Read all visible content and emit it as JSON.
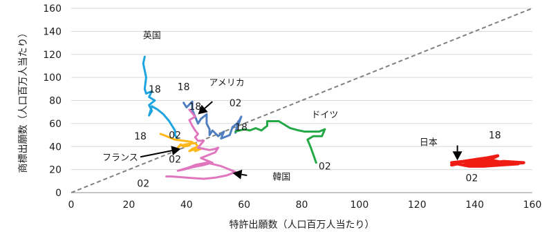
{
  "chart_data": {
    "type": "line",
    "xlabel": "特許出願数（人口百万人当たり）",
    "ylabel": "商標出願数（人口百万人当たり）",
    "xlim": [
      0,
      160
    ],
    "ylim": [
      0,
      160
    ],
    "xticks": [
      0,
      20,
      40,
      60,
      80,
      100,
      120,
      140,
      160
    ],
    "yticks": [
      0,
      20,
      40,
      60,
      80,
      100,
      120,
      140,
      160
    ],
    "grid": "horizontal",
    "reference_line": {
      "from": [
        0,
        0
      ],
      "to": [
        160,
        160
      ],
      "style": "dashed",
      "color": "#7f7f7f"
    },
    "series": [
      {
        "name": "英国",
        "color": "#1ea5e0",
        "points": [
          [
            25.5,
            118
          ],
          [
            25,
            112
          ],
          [
            26,
            100
          ],
          [
            25.5,
            90
          ],
          [
            26,
            86
          ],
          [
            28,
            88
          ],
          [
            27,
            83
          ],
          [
            29,
            80
          ],
          [
            27,
            76
          ],
          [
            28,
            71
          ],
          [
            27,
            67
          ],
          [
            28,
            75
          ],
          [
            30,
            72
          ],
          [
            32,
            68
          ],
          [
            34,
            62
          ],
          [
            35,
            58
          ],
          [
            36,
            54
          ],
          [
            36,
            50
          ],
          [
            37,
            46
          ]
        ]
      },
      {
        "name": "アメリカ",
        "color": "#4f7fbf",
        "points": [
          [
            39,
            78
          ],
          [
            40,
            74
          ],
          [
            42,
            79
          ],
          [
            42,
            72
          ],
          [
            43,
            66
          ],
          [
            44,
            60
          ],
          [
            45,
            64
          ],
          [
            47,
            68
          ],
          [
            47,
            60
          ],
          [
            48,
            55
          ],
          [
            48,
            50
          ],
          [
            49,
            54
          ],
          [
            51,
            49
          ],
          [
            53,
            53
          ],
          [
            52,
            47
          ],
          [
            55,
            50
          ],
          [
            56,
            57
          ],
          [
            58,
            61
          ],
          [
            59,
            66
          ],
          [
            57,
            52
          ],
          [
            58,
            62
          ]
        ]
      },
      {
        "name": "ドイツ",
        "color": "#22a845",
        "points": [
          [
            57,
            53
          ],
          [
            60,
            55
          ],
          [
            62,
            54
          ],
          [
            64,
            56
          ],
          [
            66,
            54
          ],
          [
            68,
            58
          ],
          [
            68,
            62
          ],
          [
            72,
            62
          ],
          [
            76,
            56
          ],
          [
            79,
            54
          ],
          [
            81,
            53
          ],
          [
            84,
            53
          ],
          [
            86,
            53
          ],
          [
            88,
            55
          ],
          [
            87,
            49
          ],
          [
            84,
            49
          ],
          [
            82,
            46
          ],
          [
            83,
            40
          ],
          [
            84,
            33
          ],
          [
            85,
            26
          ]
        ]
      },
      {
        "name": "フランス",
        "color": "#ffb81c",
        "points": [
          [
            31,
            51
          ],
          [
            33,
            49
          ],
          [
            36,
            46
          ],
          [
            39,
            45
          ],
          [
            42,
            44
          ],
          [
            41,
            41
          ],
          [
            39,
            40
          ],
          [
            38,
            42
          ],
          [
            37,
            39
          ],
          [
            38,
            41
          ],
          [
            40,
            42
          ],
          [
            43,
            43
          ],
          [
            44,
            40
          ],
          [
            42,
            38
          ],
          [
            41,
            36
          ],
          [
            42,
            37
          ],
          [
            45,
            38
          ],
          [
            43,
            36
          ]
        ]
      },
      {
        "name": "韓国",
        "color": "#e076be",
        "points": [
          [
            41,
            72
          ],
          [
            42,
            69
          ],
          [
            43,
            66
          ],
          [
            41,
            63
          ],
          [
            42,
            58
          ],
          [
            43,
            54
          ],
          [
            44,
            51
          ],
          [
            43,
            48
          ],
          [
            44,
            45
          ],
          [
            46,
            45
          ],
          [
            45,
            42
          ],
          [
            44,
            39
          ],
          [
            46,
            38
          ],
          [
            48,
            37
          ],
          [
            50,
            38
          ],
          [
            51,
            39
          ],
          [
            50,
            35
          ],
          [
            48,
            33
          ],
          [
            45,
            30
          ],
          [
            47,
            28
          ],
          [
            49,
            26
          ],
          [
            46,
            24
          ],
          [
            42,
            22
          ],
          [
            39,
            20
          ],
          [
            37,
            19
          ],
          [
            41,
            22
          ],
          [
            43,
            24
          ],
          [
            47,
            26
          ],
          [
            52,
            23
          ],
          [
            55,
            20
          ],
          [
            57,
            18
          ],
          [
            54,
            15
          ],
          [
            50,
            13
          ],
          [
            46,
            12
          ],
          [
            40,
            13
          ],
          [
            35,
            14
          ],
          [
            33,
            14
          ]
        ]
      },
      {
        "name": "日本",
        "color": "#ef1c14",
        "points": [
          [
            132,
            26
          ],
          [
            136,
            27
          ],
          [
            141,
            29
          ],
          [
            144,
            30
          ],
          [
            148,
            32
          ],
          [
            144,
            27
          ],
          [
            139,
            26
          ],
          [
            142,
            25
          ],
          [
            147,
            25
          ],
          [
            152,
            25
          ],
          [
            157,
            26
          ],
          [
            150,
            27
          ],
          [
            144,
            25
          ],
          [
            139,
            24
          ],
          [
            136,
            24
          ],
          [
            140,
            27
          ],
          [
            146,
            28
          ],
          [
            150,
            26
          ],
          [
            155,
            25
          ],
          [
            149,
            24
          ],
          [
            143,
            23
          ],
          [
            138,
            23
          ],
          [
            134,
            25
          ],
          [
            132,
            24
          ]
        ]
      }
    ],
    "annotations": [
      {
        "text": "英国",
        "x": 28,
        "y": 137
      },
      {
        "text": "18",
        "x": 29,
        "y": 90
      },
      {
        "text": "18",
        "x": 39,
        "y": 92
      },
      {
        "text": "アメリカ",
        "x": 54,
        "y": 96
      },
      {
        "text": "02",
        "x": 57,
        "y": 78
      },
      {
        "text": "18",
        "x": 43,
        "y": 75
      },
      {
        "text": "ドイツ",
        "x": 88,
        "y": 68
      },
      {
        "text": "18",
        "x": 59,
        "y": 57
      },
      {
        "text": "18",
        "x": 24,
        "y": 49
      },
      {
        "text": "02",
        "x": 36,
        "y": 50
      },
      {
        "text": "フランス",
        "x": 17,
        "y": 31
      },
      {
        "text": "02",
        "x": 36,
        "y": 29
      },
      {
        "text": "02",
        "x": 88,
        "y": 23
      },
      {
        "text": "韓国",
        "x": 73,
        "y": 14
      },
      {
        "text": "02",
        "x": 25,
        "y": 8
      },
      {
        "text": "日本",
        "x": 124,
        "y": 44
      },
      {
        "text": "18",
        "x": 147,
        "y": 50
      },
      {
        "text": "02",
        "x": 139,
        "y": 13
      }
    ],
    "arrows": [
      {
        "from": [
          49,
          79
        ],
        "to": [
          44,
          68
        ]
      },
      {
        "from": [
          61,
          15
        ],
        "to": [
          56,
          17
        ]
      },
      {
        "from": [
          24,
          31
        ],
        "to": [
          38,
          38
        ]
      },
      {
        "from": [
          134,
          41
        ],
        "to": [
          134,
          28
        ]
      }
    ]
  }
}
